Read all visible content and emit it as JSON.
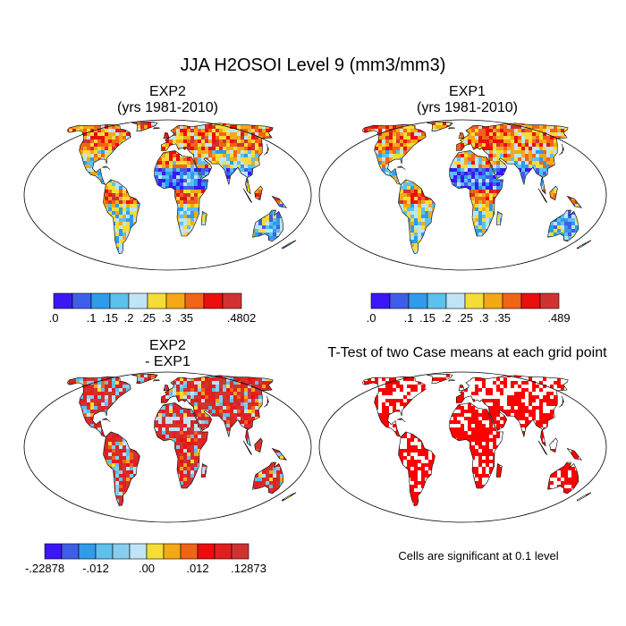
{
  "figure": {
    "title": "JJA H2OSOI Level 9 (mm3/mm3)"
  },
  "chart_data": [
    {
      "type": "heatmap",
      "title": "EXP2",
      "subtitle": "(yrs 1981-2010)",
      "projection": "robinson",
      "colorbar": {
        "colors": [
          "#3b17f5",
          "#3f5ee8",
          "#2f9bea",
          "#5dc0ed",
          "#bfe4f5",
          "#f6dc37",
          "#f4a817",
          "#f06418",
          "#ec0d0d",
          "#d03232"
        ],
        "tick_labels": [
          ".0",
          ".1",
          ".15",
          ".2",
          ".25",
          ".3",
          ".35",
          ".4802"
        ],
        "tick_index": [
          0,
          2,
          3,
          4,
          5,
          6,
          7,
          10
        ]
      }
    },
    {
      "type": "heatmap",
      "title": "EXP1",
      "subtitle": "(yrs 1981-2010)",
      "projection": "robinson",
      "colorbar": {
        "colors": [
          "#3b17f5",
          "#3f5ee8",
          "#2f9bea",
          "#5dc0ed",
          "#bfe4f5",
          "#f6dc37",
          "#f4a817",
          "#f06418",
          "#ec0d0d",
          "#d03232"
        ],
        "tick_labels": [
          ".0",
          ".1",
          ".15",
          ".2",
          ".25",
          ".3",
          ".35",
          ".489"
        ],
        "tick_index": [
          0,
          2,
          3,
          4,
          5,
          6,
          7,
          10
        ]
      }
    },
    {
      "type": "heatmap",
      "title": "EXP2",
      "subtitle": "- EXP1",
      "projection": "robinson",
      "colorbar": {
        "colors": [
          "#3b17f5",
          "#3f5ee8",
          "#2f9bea",
          "#5dc0ed",
          "#87cdee",
          "#bfe4f5",
          "#f6dc37",
          "#f4a817",
          "#f06418",
          "#ec0d0d",
          "#e02020",
          "#d03232"
        ],
        "tick_labels": [
          "-.22878",
          "-.012",
          ".00",
          ".012",
          ".12873"
        ],
        "tick_index": [
          0,
          3,
          6,
          9,
          12
        ]
      }
    },
    {
      "type": "heatmap",
      "title": "T-Test of two Case means at each grid point",
      "projection": "robinson",
      "note": "Cells are significant at 0.1 level"
    }
  ]
}
